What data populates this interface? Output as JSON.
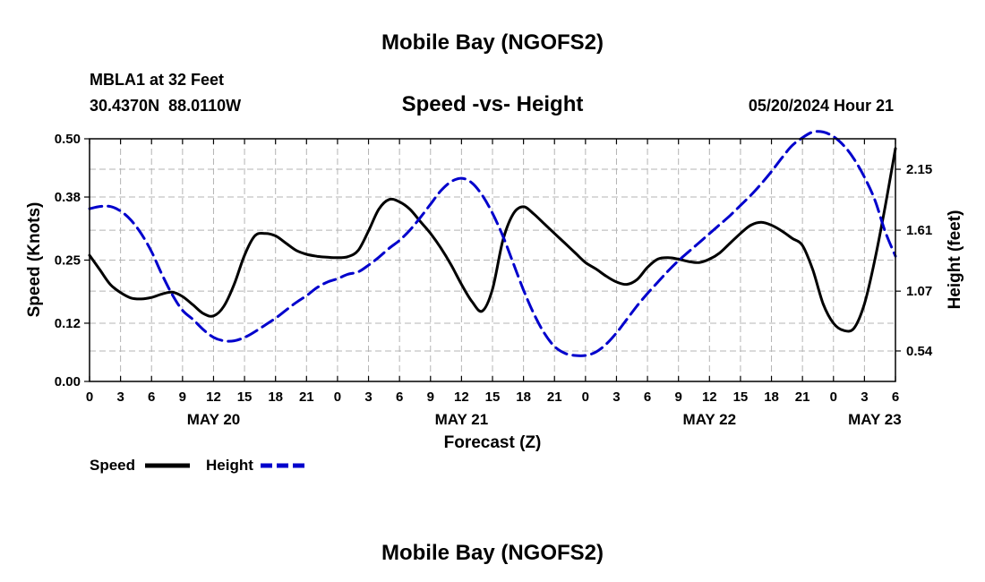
{
  "chart_data": {
    "type": "line",
    "title": "Mobile Bay (NGOFS2)",
    "subtitle": "Speed -vs- Height",
    "station": "MBLA1 at 32 Feet",
    "coordinates": "30.4370N  88.0110W",
    "run_time": "05/20/2024 Hour 21",
    "footer_title": "Mobile Bay (NGOFS2)",
    "xlabel": "Forecast (Z)",
    "ylabel_left": "Speed (Knots)",
    "ylabel_right": "Height (feet)",
    "x_range_hours": [
      0,
      78
    ],
    "ylim_left": [
      0,
      0.5
    ],
    "ylim_right": [
      0.27,
      2.42
    ],
    "x_tick_labels": [
      "0",
      "3",
      "6",
      "9",
      "12",
      "15",
      "18",
      "21",
      "0",
      "3",
      "6",
      "9",
      "12",
      "15",
      "18",
      "21",
      "0",
      "3",
      "6",
      "9",
      "12",
      "15",
      "18",
      "21",
      "0",
      "3",
      "6"
    ],
    "x_date_labels": [
      {
        "hour": 12,
        "label": "MAY 20"
      },
      {
        "hour": 36,
        "label": "MAY 21"
      },
      {
        "hour": 60,
        "label": "MAY 22"
      },
      {
        "hour": 76,
        "label": "MAY 23"
      }
    ],
    "y_ticks_left": [
      0.0,
      0.12,
      0.25,
      0.38,
      0.5
    ],
    "y_tick_labels_left": [
      "0.00",
      "0.12",
      "0.25",
      "0.38",
      "0.50"
    ],
    "y_ticks_right": [
      0.54,
      1.07,
      1.61,
      2.15
    ],
    "y_tick_labels_right": [
      "0.54",
      "1.07",
      "1.61",
      "2.15"
    ],
    "grid": true,
    "legend": [
      {
        "label": "Speed",
        "color": "#000000",
        "style": "solid"
      },
      {
        "label": "Height",
        "color": "#0000cc",
        "style": "dashed"
      }
    ],
    "series": [
      {
        "name": "Speed",
        "axis": "left",
        "color": "#000000",
        "x": [
          0,
          1,
          2,
          3,
          4,
          5,
          6,
          7,
          8,
          9,
          10,
          11,
          12,
          13,
          14,
          15,
          16,
          17,
          18,
          19,
          20,
          21,
          22,
          23,
          24,
          25,
          26,
          27,
          28,
          29,
          30,
          31,
          32,
          33,
          34,
          35,
          36,
          37,
          38,
          39,
          40,
          41,
          42,
          43,
          44,
          45,
          46,
          47,
          48,
          49,
          50,
          51,
          52,
          53,
          54,
          55,
          56,
          57,
          58,
          59,
          60,
          61,
          62,
          63,
          64,
          65,
          66,
          67,
          68,
          69,
          70,
          71,
          72,
          73,
          74,
          75,
          76,
          77,
          78
        ],
        "values": [
          0.26,
          0.23,
          0.2,
          0.183,
          0.172,
          0.17,
          0.173,
          0.18,
          0.184,
          0.175,
          0.158,
          0.14,
          0.135,
          0.155,
          0.2,
          0.26,
          0.3,
          0.305,
          0.3,
          0.285,
          0.27,
          0.262,
          0.258,
          0.256,
          0.255,
          0.257,
          0.27,
          0.31,
          0.355,
          0.375,
          0.37,
          0.355,
          0.33,
          0.305,
          0.275,
          0.24,
          0.2,
          0.165,
          0.145,
          0.19,
          0.29,
          0.345,
          0.36,
          0.345,
          0.325,
          0.305,
          0.285,
          0.265,
          0.245,
          0.232,
          0.217,
          0.205,
          0.2,
          0.21,
          0.235,
          0.252,
          0.255,
          0.252,
          0.247,
          0.245,
          0.252,
          0.265,
          0.285,
          0.305,
          0.322,
          0.328,
          0.322,
          0.31,
          0.295,
          0.28,
          0.23,
          0.16,
          0.12,
          0.105,
          0.11,
          0.16,
          0.25,
          0.36,
          0.48
        ]
      },
      {
        "name": "Height",
        "axis": "right",
        "color": "#0000cc",
        "x": [
          0,
          1,
          2,
          3,
          4,
          5,
          6,
          7,
          8,
          9,
          10,
          11,
          12,
          13,
          14,
          15,
          16,
          17,
          18,
          19,
          20,
          21,
          22,
          23,
          24,
          25,
          26,
          27,
          28,
          29,
          30,
          31,
          32,
          33,
          34,
          35,
          36,
          37,
          38,
          39,
          40,
          41,
          42,
          43,
          44,
          45,
          46,
          47,
          48,
          49,
          50,
          51,
          52,
          53,
          54,
          55,
          56,
          57,
          58,
          59,
          60,
          61,
          62,
          63,
          64,
          65,
          66,
          67,
          68,
          69,
          70,
          71,
          72,
          73,
          74,
          75,
          76,
          77,
          78
        ],
        "values": [
          1.8,
          1.82,
          1.82,
          1.78,
          1.7,
          1.58,
          1.42,
          1.22,
          1.04,
          0.9,
          0.82,
          0.73,
          0.66,
          0.63,
          0.63,
          0.66,
          0.71,
          0.77,
          0.83,
          0.9,
          0.97,
          1.03,
          1.1,
          1.15,
          1.18,
          1.22,
          1.24,
          1.3,
          1.37,
          1.45,
          1.52,
          1.61,
          1.72,
          1.84,
          1.96,
          2.04,
          2.07,
          2.03,
          1.92,
          1.76,
          1.56,
          1.32,
          1.08,
          0.87,
          0.7,
          0.58,
          0.52,
          0.5,
          0.5,
          0.53,
          0.6,
          0.7,
          0.82,
          0.94,
          1.05,
          1.15,
          1.25,
          1.34,
          1.42,
          1.5,
          1.58,
          1.66,
          1.74,
          1.83,
          1.92,
          2.02,
          2.13,
          2.25,
          2.36,
          2.43,
          2.48,
          2.48,
          2.44,
          2.36,
          2.24,
          2.08,
          1.88,
          1.6,
          1.38
        ]
      }
    ]
  }
}
